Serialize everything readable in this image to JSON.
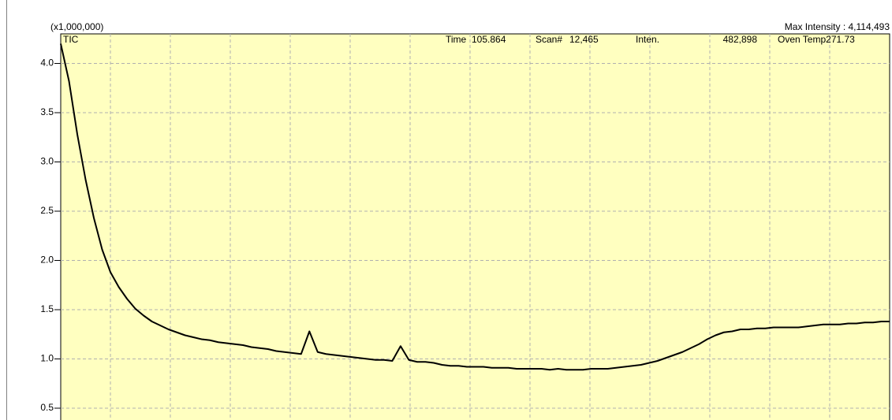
{
  "chart_data": {
    "type": "line",
    "y_multiplier": "(x1,000,000)",
    "max_intensity": "Max Intensity : 4,114,493",
    "status": [
      "Time",
      "105.864",
      "Scan#",
      "12,465",
      "Inten.",
      "482,898",
      "Oven Temp271.73"
    ],
    "ylim": [
      0.38,
      4.3
    ],
    "yticks": [
      0.5,
      {
        "value": 1,
        "label": "1.0"
      },
      1.5,
      {
        "value": 2,
        "label": "2.0"
      },
      2.5,
      {
        "value": 3,
        "label": "3.0"
      },
      3.5,
      {
        "value": 4,
        "label": "4.0"
      }
    ],
    "grid": true,
    "series": [
      {
        "name": "TIC",
        "color": "#000000",
        "values": [
          4.2,
          3.82,
          3.28,
          2.82,
          2.43,
          2.11,
          1.88,
          1.73,
          1.61,
          1.51,
          1.44,
          1.38,
          1.34,
          1.3,
          1.27,
          1.24,
          1.22,
          1.2,
          1.19,
          1.17,
          1.16,
          1.15,
          1.14,
          1.12,
          1.11,
          1.1,
          1.08,
          1.07,
          1.06,
          1.05,
          1.28,
          1.07,
          1.05,
          1.04,
          1.03,
          1.02,
          1.01,
          1.0,
          0.99,
          0.99,
          0.98,
          1.13,
          0.99,
          0.97,
          0.97,
          0.96,
          0.94,
          0.93,
          0.93,
          0.92,
          0.92,
          0.92,
          0.91,
          0.91,
          0.91,
          0.9,
          0.9,
          0.9,
          0.9,
          0.89,
          0.9,
          0.89,
          0.89,
          0.89,
          0.9,
          0.9,
          0.9,
          0.91,
          0.92,
          0.93,
          0.94,
          0.96,
          0.98,
          1.01,
          1.04,
          1.07,
          1.11,
          1.15,
          1.2,
          1.24,
          1.27,
          1.28,
          1.3,
          1.3,
          1.31,
          1.31,
          1.32,
          1.32,
          1.32,
          1.32,
          1.33,
          1.34,
          1.35,
          1.35,
          1.35,
          1.36,
          1.36,
          1.37,
          1.37,
          1.38,
          1.38
        ]
      }
    ]
  }
}
